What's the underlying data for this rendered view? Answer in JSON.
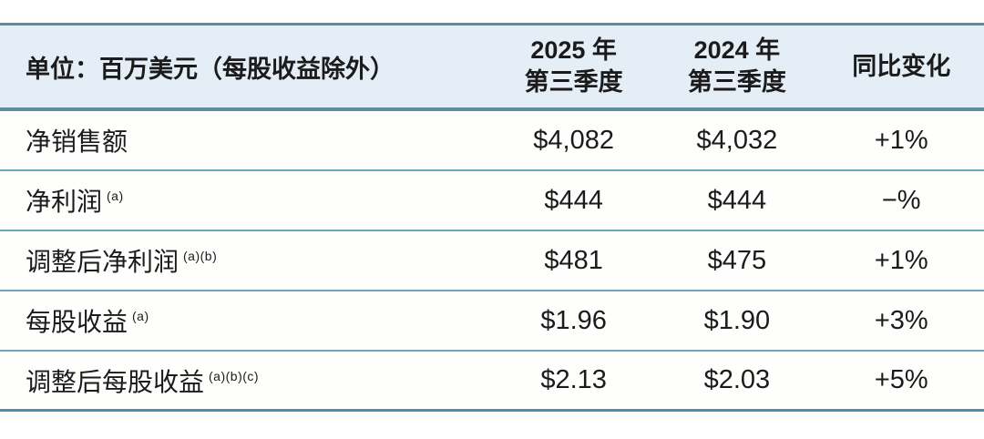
{
  "colors": {
    "header_bg": "#e5eef7",
    "border_top": "#568ea3",
    "border_header_bottom": "#5e8fa0",
    "border_row": "#69a6be",
    "border_bottom": "#4f8dad",
    "text": "#1b1b1b"
  },
  "table": {
    "unit_label": "单位：百万美元（每股收益除外）",
    "col_2025": {
      "line1": "2025 年",
      "line2": "第三季度"
    },
    "col_2024": {
      "line1": "2024 年",
      "line2": "第三季度"
    },
    "col_yoy": "同比变化",
    "rows": [
      {
        "label": "净销售额",
        "sup": "",
        "q3_2025": "$4,082",
        "q3_2024": "$4,032",
        "yoy": "+1%"
      },
      {
        "label": "净利润",
        "sup": "(a)",
        "q3_2025": "$444",
        "q3_2024": "$444",
        "yoy": "−%"
      },
      {
        "label": "调整后净利润",
        "sup": "(a)(b)",
        "q3_2025": "$481",
        "q3_2024": "$475",
        "yoy": "+1%"
      },
      {
        "label": "每股收益",
        "sup": "(a)",
        "q3_2025": "$1.96",
        "q3_2024": "$1.90",
        "yoy": "+3%"
      },
      {
        "label": "调整后每股收益",
        "sup": "(a)(b)(c)",
        "q3_2025": "$2.13",
        "q3_2024": "$2.03",
        "yoy": "+5%"
      }
    ]
  },
  "chart_data": {
    "type": "table",
    "title": "单位：百万美元（每股收益除外）",
    "columns": [
      "单位：百万美元（每股收益除外）",
      "2025 年 第三季度",
      "2024 年 第三季度",
      "同比变化"
    ],
    "rows": [
      [
        "净销售额",
        "$4,082",
        "$4,032",
        "+1%"
      ],
      [
        "净利润 (a)",
        "$444",
        "$444",
        "−%"
      ],
      [
        "调整后净利润 (a)(b)",
        "$481",
        "$475",
        "+1%"
      ],
      [
        "每股收益 (a)",
        "$1.96",
        "$1.90",
        "+3%"
      ],
      [
        "调整后每股收益 (a)(b)(c)",
        "$2.13",
        "$2.03",
        "+5%"
      ]
    ]
  }
}
